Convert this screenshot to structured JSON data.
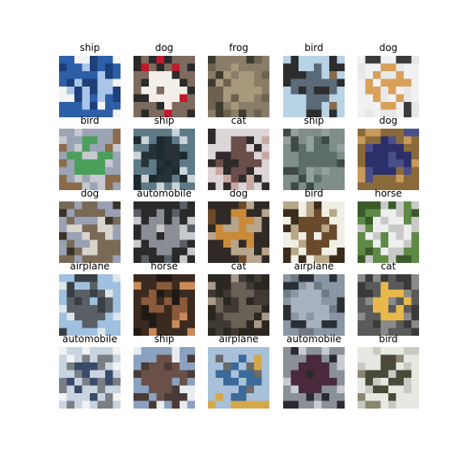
{
  "grid": {
    "cells": [
      {
        "label": "ship",
        "icon": "ship-icon",
        "colors": [
          "#2d5fa8",
          "#a9c6e8",
          "#f4f4f4",
          "#1d3f7a"
        ]
      },
      {
        "label": "dog",
        "icon": "dog-icon",
        "colors": [
          "#7c6b5e",
          "#f3efe8",
          "#c2182b",
          "#2a2a2a"
        ]
      },
      {
        "label": "frog",
        "icon": "frog-icon",
        "colors": [
          "#8a7d68",
          "#a8987c",
          "#3d3a2f",
          "#6d6150"
        ]
      },
      {
        "label": "bird",
        "icon": "bird-icon",
        "colors": [
          "#b8d2e6",
          "#5a6a78",
          "#8b6b4a",
          "#2d2d2d"
        ]
      },
      {
        "label": "dog",
        "icon": "dog-icon",
        "colors": [
          "#f1f1f3",
          "#d9a05a",
          "#3b3b3b",
          "#e8e8e8"
        ]
      },
      {
        "label": "bird",
        "icon": "bird-icon",
        "colors": [
          "#9aa4b5",
          "#4aa05a",
          "#8b6b4a",
          "#c8c8d0"
        ]
      },
      {
        "label": "ship",
        "icon": "ship-icon",
        "colors": [
          "#5e7a86",
          "#263238",
          "#c9d4d8",
          "#1b2a30"
        ]
      },
      {
        "label": "cat",
        "icon": "cat-icon",
        "colors": [
          "#dcd6d8",
          "#6a4e4a",
          "#caa8a2",
          "#2f2a2a"
        ]
      },
      {
        "label": "ship",
        "icon": "ship-icon",
        "colors": [
          "#7f8f88",
          "#5d6d67",
          "#3f4a45",
          "#95a29c"
        ]
      },
      {
        "label": "dog",
        "icon": "dog-icon",
        "colors": [
          "#8a6a3a",
          "#2c2f6a",
          "#c79b5c",
          "#4a4f8a"
        ]
      },
      {
        "label": "dog",
        "icon": "dog-icon",
        "colors": [
          "#7a6a55",
          "#d9d4cc",
          "#3a332a",
          "#9aa1b5"
        ]
      },
      {
        "label": "automobile",
        "icon": "automobile-icon",
        "colors": [
          "#2a2a2a",
          "#8a8f95",
          "#5a5f65",
          "#c6c8cb"
        ]
      },
      {
        "label": "dog",
        "icon": "dog-icon",
        "colors": [
          "#2f2a25",
          "#c98a3a",
          "#6b4a2a",
          "#b7a58c"
        ]
      },
      {
        "label": "bird",
        "icon": "bird-icon",
        "colors": [
          "#f0efe6",
          "#6a4a2a",
          "#3b2c1c",
          "#b8a888"
        ]
      },
      {
        "label": "horse",
        "icon": "horse-icon",
        "colors": [
          "#5e8a45",
          "#eeeeee",
          "#3a5a2a",
          "#c9c9c9"
        ]
      },
      {
        "label": "airplane",
        "icon": "airplane-icon",
        "colors": [
          "#9fc0e0",
          "#5a5f65",
          "#dfe6ea",
          "#3a3f45"
        ]
      },
      {
        "label": "horse",
        "icon": "horse-icon",
        "colors": [
          "#3a2a1f",
          "#8a5a3a",
          "#c98a5a",
          "#1f1a15"
        ]
      },
      {
        "label": "cat",
        "icon": "cat-icon",
        "colors": [
          "#2a2620",
          "#6a6055",
          "#a89a88",
          "#3f3a34"
        ]
      },
      {
        "label": "airplane",
        "icon": "airplane-icon",
        "colors": [
          "#8a96a4",
          "#a8b2be",
          "#2a2f35",
          "#6f7a86"
        ]
      },
      {
        "label": "cat",
        "icon": "cat-icon",
        "colors": [
          "#5a5a5a",
          "#e8b84a",
          "#3a3a3a",
          "#8a8a8a"
        ]
      },
      {
        "label": "automobile",
        "icon": "automobile-icon",
        "colors": [
          "#c8d4e0",
          "#3a4a6a",
          "#f2f2f2",
          "#7a7f85"
        ]
      },
      {
        "label": "ship",
        "icon": "ship-icon",
        "colors": [
          "#8aa2c0",
          "#6a5048",
          "#e8ecf0",
          "#4a3a35"
        ]
      },
      {
        "label": "airplane",
        "icon": "airplane-icon",
        "colors": [
          "#a8c0d8",
          "#3a6a9a",
          "#d4a84a",
          "#6a6a6a"
        ]
      },
      {
        "label": "automobile",
        "icon": "automobile-icon",
        "colors": [
          "#8a9098",
          "#4a2a3a",
          "#c8ccd2",
          "#2a2a30"
        ]
      },
      {
        "label": "bird",
        "icon": "bird-icon",
        "colors": [
          "#e6e8e2",
          "#4a4a3a",
          "#8a8670",
          "#c8cac2"
        ]
      }
    ]
  }
}
